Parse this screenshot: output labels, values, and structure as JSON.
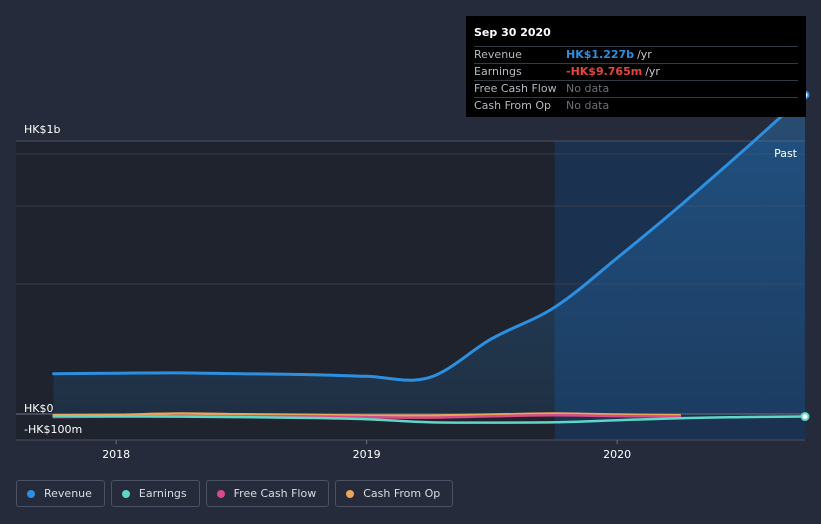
{
  "tooltip": {
    "date": "Sep 30 2020",
    "rows": [
      {
        "label": "Revenue",
        "value": "HK$1.227b",
        "unit": "/yr",
        "color": "#2d8fe0"
      },
      {
        "label": "Earnings",
        "value": "-HK$9.765m",
        "unit": "/yr",
        "color": "#e5453b"
      },
      {
        "label": "Free Cash Flow",
        "value": "No data",
        "unit": "",
        "color": "#6b7078"
      },
      {
        "label": "Cash From Op",
        "value": "No data",
        "unit": "",
        "color": "#6b7078"
      }
    ]
  },
  "legend": [
    {
      "label": "Revenue",
      "color": "#2d8fe0"
    },
    {
      "label": "Earnings",
      "color": "#5fd6c8"
    },
    {
      "label": "Free Cash Flow",
      "color": "#d84b89"
    },
    {
      "label": "Cash From Op",
      "color": "#e9a55a"
    }
  ],
  "chart_data": {
    "type": "line",
    "title": "",
    "xlabel": "",
    "ylabel": "",
    "y_tick_labels": [
      "HK$1b",
      "HK$0",
      "-HK$100m"
    ],
    "x_tick_labels": [
      "2018",
      "2019",
      "2020"
    ],
    "xlim": [
      2017.6,
      2020.75
    ],
    "ylim": [
      -100,
      1050
    ],
    "past_label": "Past",
    "past_start": 2019.75,
    "series": [
      {
        "name": "Revenue",
        "color": "#2d8fe0",
        "x": [
          2017.75,
          2018.0,
          2018.25,
          2018.5,
          2018.75,
          2019.0,
          2019.25,
          2019.5,
          2019.75,
          2020.0,
          2020.25,
          2020.5,
          2020.75
        ],
        "y": [
          155,
          157,
          158,
          155,
          152,
          145,
          140,
          290,
          410,
          600,
          800,
          1010,
          1227
        ]
      },
      {
        "name": "Earnings",
        "color": "#5fd6c8",
        "x": [
          2017.75,
          2018.0,
          2018.25,
          2018.5,
          2018.75,
          2019.0,
          2019.25,
          2019.5,
          2019.75,
          2020.0,
          2020.25,
          2020.5,
          2020.75
        ],
        "y": [
          -8,
          -9,
          -10,
          -12,
          -15,
          -20,
          -32,
          -33,
          -32,
          -24,
          -16,
          -12,
          -9.765
        ]
      },
      {
        "name": "Free Cash Flow",
        "color": "#d84b89",
        "x": [
          2017.75,
          2018.0,
          2018.25,
          2018.5,
          2018.75,
          2019.0,
          2019.25,
          2019.5,
          2019.75,
          2020.0,
          2020.25
        ],
        "y": [
          -12,
          -10,
          -8,
          -9,
          -9,
          -12,
          -14,
          -9,
          -5,
          -8,
          -10
        ]
      },
      {
        "name": "Cash From Op",
        "color": "#e9a55a",
        "x": [
          2017.75,
          2018.0,
          2018.25,
          2018.5,
          2018.75,
          2019.0,
          2019.25,
          2019.5,
          2019.75,
          2020.0,
          2020.25
        ],
        "y": [
          -5,
          -3,
          2,
          -1,
          -3,
          -6,
          -6,
          -2,
          2,
          -2,
          -5
        ]
      }
    ]
  }
}
